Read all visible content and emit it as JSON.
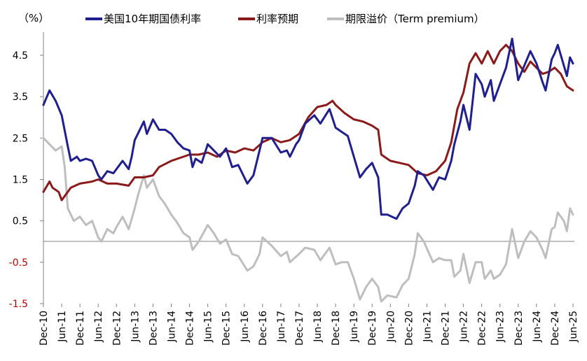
{
  "chart_data": {
    "type": "line",
    "unit_label": "（%）",
    "ylim": [
      -1.5,
      5.0
    ],
    "yticks": [
      {
        "value": 4.5,
        "label": "4.5"
      },
      {
        "value": 3.5,
        "label": "3.5"
      },
      {
        "value": 2.5,
        "label": "2.5"
      },
      {
        "value": 1.5,
        "label": "1.5"
      },
      {
        "value": 0.5,
        "label": "0.5"
      },
      {
        "value": -0.5,
        "label": "-0.5"
      },
      {
        "value": -1.5,
        "label": "-1.5"
      }
    ],
    "xlim": [
      "2010-12",
      "2025-06"
    ],
    "xticks": [
      "Dec-10",
      "Jun-11",
      "Dec-11",
      "Jun-12",
      "Dec-12",
      "Jun-13",
      "Dec-13",
      "Jun-14",
      "Dec-14",
      "Jun-15",
      "Dec-15",
      "Jun-16",
      "Dec-16",
      "Jun-17",
      "Dec-17",
      "Jun-18",
      "Dec-18",
      "Jun-19",
      "Dec-19",
      "Jun-20",
      "Dec-20",
      "Jun-21",
      "Dec-21",
      "Jun-22",
      "Dec-22",
      "Jun-23",
      "Dec-23",
      "Jun-24",
      "Dec-24",
      "Jun-25"
    ],
    "legend_position": "top",
    "grid": false,
    "series": [
      {
        "name": "美国10年期国债利率",
        "color": "#1f1f8f",
        "points": [
          [
            "2010-12",
            3.3
          ],
          [
            "2011-02",
            3.65
          ],
          [
            "2011-04",
            3.4
          ],
          [
            "2011-06",
            3.05
          ],
          [
            "2011-08",
            2.3
          ],
          [
            "2011-09",
            1.95
          ],
          [
            "2011-11",
            2.05
          ],
          [
            "2011-12",
            1.95
          ],
          [
            "2012-02",
            2.0
          ],
          [
            "2012-04",
            1.95
          ],
          [
            "2012-06",
            1.6
          ],
          [
            "2012-07",
            1.5
          ],
          [
            "2012-09",
            1.7
          ],
          [
            "2012-11",
            1.65
          ],
          [
            "2012-12",
            1.75
          ],
          [
            "2013-02",
            1.95
          ],
          [
            "2013-04",
            1.75
          ],
          [
            "2013-05",
            2.05
          ],
          [
            "2013-06",
            2.45
          ],
          [
            "2013-07",
            2.6
          ],
          [
            "2013-09",
            2.9
          ],
          [
            "2013-10",
            2.6
          ],
          [
            "2013-12",
            2.95
          ],
          [
            "2014-02",
            2.7
          ],
          [
            "2014-04",
            2.7
          ],
          [
            "2014-06",
            2.6
          ],
          [
            "2014-08",
            2.4
          ],
          [
            "2014-10",
            2.25
          ],
          [
            "2014-12",
            2.2
          ],
          [
            "2015-01",
            1.8
          ],
          [
            "2015-02",
            2.0
          ],
          [
            "2015-04",
            1.9
          ],
          [
            "2015-06",
            2.35
          ],
          [
            "2015-08",
            2.2
          ],
          [
            "2015-10",
            2.05
          ],
          [
            "2015-12",
            2.25
          ],
          [
            "2016-02",
            1.8
          ],
          [
            "2016-04",
            1.85
          ],
          [
            "2016-07",
            1.4
          ],
          [
            "2016-09",
            1.6
          ],
          [
            "2016-11",
            2.2
          ],
          [
            "2016-12",
            2.5
          ],
          [
            "2017-03",
            2.5
          ],
          [
            "2017-06",
            2.15
          ],
          [
            "2017-08",
            2.2
          ],
          [
            "2017-09",
            2.05
          ],
          [
            "2017-11",
            2.35
          ],
          [
            "2017-12",
            2.45
          ],
          [
            "2018-02",
            2.85
          ],
          [
            "2018-05",
            3.05
          ],
          [
            "2018-07",
            2.85
          ],
          [
            "2018-10",
            3.2
          ],
          [
            "2018-12",
            2.75
          ],
          [
            "2019-02",
            2.65
          ],
          [
            "2019-04",
            2.55
          ],
          [
            "2019-06",
            2.05
          ],
          [
            "2019-08",
            1.55
          ],
          [
            "2019-10",
            1.75
          ],
          [
            "2019-12",
            1.9
          ],
          [
            "2020-02",
            1.55
          ],
          [
            "2020-03",
            0.65
          ],
          [
            "2020-05",
            0.65
          ],
          [
            "2020-08",
            0.55
          ],
          [
            "2020-10",
            0.8
          ],
          [
            "2020-12",
            0.92
          ],
          [
            "2021-02",
            1.35
          ],
          [
            "2021-03",
            1.7
          ],
          [
            "2021-05",
            1.6
          ],
          [
            "2021-08",
            1.25
          ],
          [
            "2021-10",
            1.55
          ],
          [
            "2021-12",
            1.5
          ],
          [
            "2022-02",
            1.95
          ],
          [
            "2022-03",
            2.35
          ],
          [
            "2022-05",
            2.9
          ],
          [
            "2022-06",
            3.3
          ],
          [
            "2022-08",
            2.7
          ],
          [
            "2022-10",
            4.05
          ],
          [
            "2022-12",
            3.8
          ],
          [
            "2023-01",
            3.5
          ],
          [
            "2023-03",
            3.9
          ],
          [
            "2023-04",
            3.4
          ],
          [
            "2023-06",
            3.8
          ],
          [
            "2023-08",
            4.2
          ],
          [
            "2023-10",
            4.9
          ],
          [
            "2023-12",
            3.9
          ],
          [
            "2024-02",
            4.25
          ],
          [
            "2024-04",
            4.6
          ],
          [
            "2024-06",
            4.3
          ],
          [
            "2024-08",
            3.85
          ],
          [
            "2024-09",
            3.65
          ],
          [
            "2024-11",
            4.4
          ],
          [
            "2024-12",
            4.55
          ],
          [
            "2025-01",
            4.75
          ],
          [
            "2025-03",
            4.25
          ],
          [
            "2025-04",
            4.0
          ],
          [
            "2025-05",
            4.45
          ],
          [
            "2025-06",
            4.3
          ]
        ]
      },
      {
        "name": "利率预期",
        "color": "#8b1a1a",
        "points": [
          [
            "2010-12",
            1.2
          ],
          [
            "2011-02",
            1.45
          ],
          [
            "2011-03",
            1.3
          ],
          [
            "2011-05",
            1.2
          ],
          [
            "2011-06",
            1.0
          ],
          [
            "2011-07",
            1.1
          ],
          [
            "2011-09",
            1.3
          ],
          [
            "2011-12",
            1.4
          ],
          [
            "2012-04",
            1.45
          ],
          [
            "2012-06",
            1.5
          ],
          [
            "2012-09",
            1.4
          ],
          [
            "2012-12",
            1.4
          ],
          [
            "2013-04",
            1.35
          ],
          [
            "2013-06",
            1.55
          ],
          [
            "2013-09",
            1.55
          ],
          [
            "2013-12",
            1.6
          ],
          [
            "2014-02",
            1.8
          ],
          [
            "2014-06",
            1.95
          ],
          [
            "2014-10",
            2.05
          ],
          [
            "2014-12",
            2.1
          ],
          [
            "2015-03",
            2.1
          ],
          [
            "2015-06",
            2.15
          ],
          [
            "2015-09",
            2.05
          ],
          [
            "2015-12",
            2.2
          ],
          [
            "2016-03",
            2.15
          ],
          [
            "2016-06",
            2.25
          ],
          [
            "2016-09",
            2.2
          ],
          [
            "2016-12",
            2.4
          ],
          [
            "2017-03",
            2.5
          ],
          [
            "2017-06",
            2.4
          ],
          [
            "2017-09",
            2.45
          ],
          [
            "2017-12",
            2.6
          ],
          [
            "2018-03",
            3.0
          ],
          [
            "2018-06",
            3.25
          ],
          [
            "2018-09",
            3.3
          ],
          [
            "2018-11",
            3.4
          ],
          [
            "2018-12",
            3.3
          ],
          [
            "2019-03",
            3.1
          ],
          [
            "2019-06",
            2.95
          ],
          [
            "2019-09",
            2.9
          ],
          [
            "2019-12",
            2.8
          ],
          [
            "2020-02",
            2.7
          ],
          [
            "2020-03",
            2.1
          ],
          [
            "2020-06",
            1.95
          ],
          [
            "2020-09",
            1.9
          ],
          [
            "2020-12",
            1.85
          ],
          [
            "2021-03",
            1.65
          ],
          [
            "2021-06",
            1.6
          ],
          [
            "2021-09",
            1.7
          ],
          [
            "2021-12",
            1.95
          ],
          [
            "2022-02",
            2.4
          ],
          [
            "2022-04",
            3.2
          ],
          [
            "2022-06",
            3.6
          ],
          [
            "2022-08",
            4.3
          ],
          [
            "2022-10",
            4.55
          ],
          [
            "2022-12",
            4.3
          ],
          [
            "2023-02",
            4.6
          ],
          [
            "2023-04",
            4.3
          ],
          [
            "2023-06",
            4.6
          ],
          [
            "2023-08",
            4.75
          ],
          [
            "2023-10",
            4.6
          ],
          [
            "2023-12",
            4.3
          ],
          [
            "2024-02",
            4.1
          ],
          [
            "2024-04",
            4.35
          ],
          [
            "2024-06",
            4.2
          ],
          [
            "2024-08",
            4.05
          ],
          [
            "2024-10",
            4.1
          ],
          [
            "2024-12",
            4.2
          ],
          [
            "2025-02",
            4.05
          ],
          [
            "2025-04",
            3.75
          ],
          [
            "2025-06",
            3.65
          ]
        ]
      },
      {
        "name": "期限溢价（Term premium）",
        "color": "#bebebe",
        "points": [
          [
            "2010-12",
            2.5
          ],
          [
            "2011-02",
            2.35
          ],
          [
            "2011-04",
            2.2
          ],
          [
            "2011-06",
            2.3
          ],
          [
            "2011-07",
            1.8
          ],
          [
            "2011-08",
            0.8
          ],
          [
            "2011-10",
            0.5
          ],
          [
            "2011-12",
            0.6
          ],
          [
            "2012-02",
            0.4
          ],
          [
            "2012-04",
            0.5
          ],
          [
            "2012-06",
            0.1
          ],
          [
            "2012-07",
            0.0
          ],
          [
            "2012-09",
            0.3
          ],
          [
            "2012-11",
            0.2
          ],
          [
            "2012-12",
            0.35
          ],
          [
            "2013-02",
            0.6
          ],
          [
            "2013-04",
            0.3
          ],
          [
            "2013-06",
            0.8
          ],
          [
            "2013-07",
            1.1
          ],
          [
            "2013-09",
            1.6
          ],
          [
            "2013-10",
            1.3
          ],
          [
            "2013-12",
            1.5
          ],
          [
            "2014-02",
            1.1
          ],
          [
            "2014-04",
            0.9
          ],
          [
            "2014-06",
            0.65
          ],
          [
            "2014-08",
            0.45
          ],
          [
            "2014-10",
            0.2
          ],
          [
            "2014-12",
            0.1
          ],
          [
            "2015-01",
            -0.2
          ],
          [
            "2015-03",
            0.0
          ],
          [
            "2015-06",
            0.4
          ],
          [
            "2015-08",
            0.2
          ],
          [
            "2015-10",
            -0.05
          ],
          [
            "2015-12",
            0.05
          ],
          [
            "2016-02",
            -0.3
          ],
          [
            "2016-04",
            -0.35
          ],
          [
            "2016-07",
            -0.7
          ],
          [
            "2016-09",
            -0.6
          ],
          [
            "2016-11",
            -0.3
          ],
          [
            "2016-12",
            0.1
          ],
          [
            "2017-03",
            -0.1
          ],
          [
            "2017-06",
            -0.35
          ],
          [
            "2017-08",
            -0.25
          ],
          [
            "2017-09",
            -0.5
          ],
          [
            "2017-12",
            -0.3
          ],
          [
            "2018-02",
            -0.15
          ],
          [
            "2018-05",
            -0.2
          ],
          [
            "2018-07",
            -0.45
          ],
          [
            "2018-10",
            -0.15
          ],
          [
            "2018-12",
            -0.55
          ],
          [
            "2019-02",
            -0.5
          ],
          [
            "2019-04",
            -0.5
          ],
          [
            "2019-06",
            -0.9
          ],
          [
            "2019-08",
            -1.4
          ],
          [
            "2019-10",
            -1.1
          ],
          [
            "2019-12",
            -0.9
          ],
          [
            "2020-02",
            -1.1
          ],
          [
            "2020-03",
            -1.45
          ],
          [
            "2020-05",
            -1.3
          ],
          [
            "2020-08",
            -1.35
          ],
          [
            "2020-10",
            -1.05
          ],
          [
            "2020-12",
            -0.9
          ],
          [
            "2021-02",
            -0.3
          ],
          [
            "2021-03",
            0.2
          ],
          [
            "2021-05",
            0.0
          ],
          [
            "2021-08",
            -0.5
          ],
          [
            "2021-10",
            -0.4
          ],
          [
            "2021-12",
            -0.45
          ],
          [
            "2022-02",
            -0.45
          ],
          [
            "2022-03",
            -0.85
          ],
          [
            "2022-05",
            -0.7
          ],
          [
            "2022-06",
            -0.3
          ],
          [
            "2022-08",
            -1.0
          ],
          [
            "2022-10",
            -0.5
          ],
          [
            "2022-12",
            -0.5
          ],
          [
            "2023-01",
            -0.9
          ],
          [
            "2023-03",
            -0.7
          ],
          [
            "2023-04",
            -0.9
          ],
          [
            "2023-06",
            -0.8
          ],
          [
            "2023-08",
            -0.55
          ],
          [
            "2023-10",
            0.3
          ],
          [
            "2023-12",
            -0.4
          ],
          [
            "2024-02",
            0.0
          ],
          [
            "2024-04",
            0.25
          ],
          [
            "2024-06",
            0.1
          ],
          [
            "2024-08",
            -0.2
          ],
          [
            "2024-09",
            -0.4
          ],
          [
            "2024-11",
            0.3
          ],
          [
            "2024-12",
            0.35
          ],
          [
            "2025-01",
            0.7
          ],
          [
            "2025-03",
            0.5
          ],
          [
            "2025-04",
            0.25
          ],
          [
            "2025-05",
            0.8
          ],
          [
            "2025-06",
            0.65
          ]
        ]
      }
    ]
  }
}
